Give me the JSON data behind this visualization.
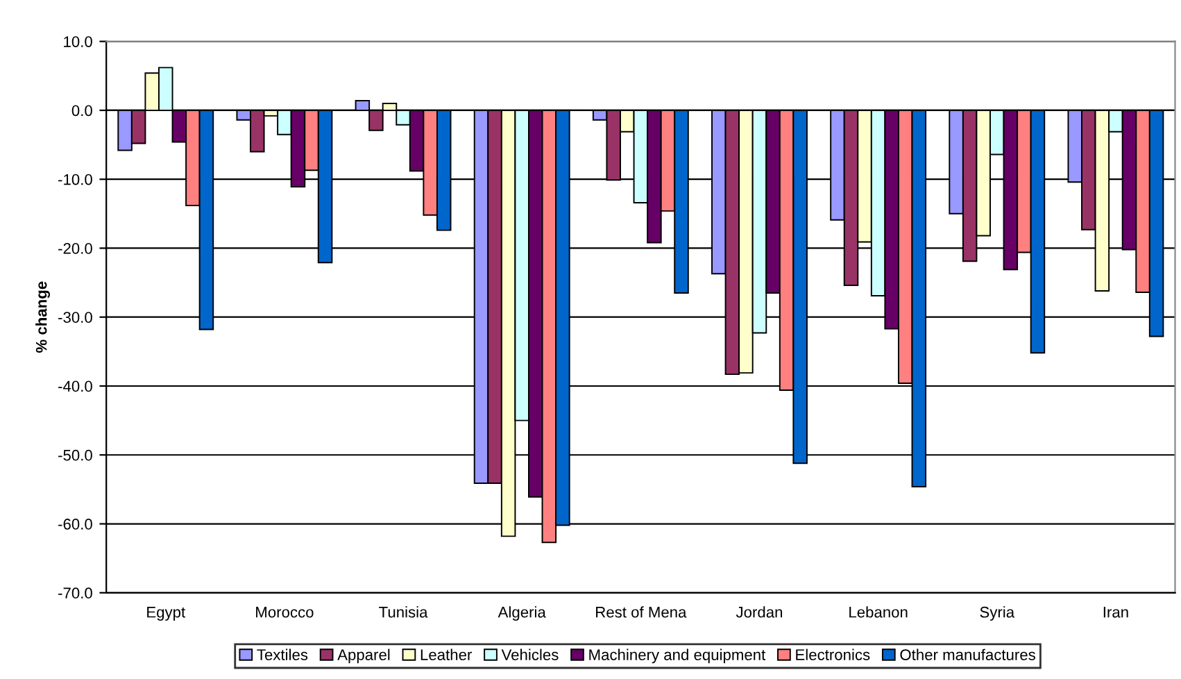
{
  "chart_data": {
    "type": "bar",
    "ylabel": "% change",
    "categories": [
      "Egypt",
      "Morocco",
      "Tunisia",
      "Algeria",
      "Rest of Mena",
      "Jordan",
      "Lebanon",
      "Syria",
      "Iran"
    ],
    "series": [
      {
        "name": "Textiles",
        "color": "#9999ff",
        "values": [
          -5.8,
          -1.4,
          1.4,
          -54.1,
          -1.4,
          -23.7,
          -15.9,
          -15.0,
          -10.4
        ]
      },
      {
        "name": "Apparel",
        "color": "#993366",
        "values": [
          -4.8,
          -6.0,
          -2.9,
          -54.1,
          -10.1,
          -38.3,
          -25.4,
          -21.9,
          -17.3
        ]
      },
      {
        "name": "Leather",
        "color": "#ffffcc",
        "values": [
          5.4,
          -0.8,
          1.0,
          -61.8,
          -3.1,
          -38.1,
          -19.1,
          -18.2,
          -26.2
        ]
      },
      {
        "name": "Vehicles",
        "color": "#ccffff",
        "values": [
          6.2,
          -3.5,
          -2.1,
          -45.0,
          -13.4,
          -32.3,
          -26.9,
          -6.4,
          -3.1
        ]
      },
      {
        "name": "Machinery and equipment",
        "color": "#660066",
        "values": [
          -4.6,
          -11.1,
          -8.8,
          -56.1,
          -19.2,
          -26.5,
          -31.7,
          -23.1,
          -20.2
        ]
      },
      {
        "name": "Electronics",
        "color": "#ff8080",
        "values": [
          -13.8,
          -8.7,
          -15.2,
          -62.7,
          -14.6,
          -40.6,
          -39.6,
          -20.6,
          -26.4
        ]
      },
      {
        "name": "Other manufactures",
        "color": "#0066cc",
        "values": [
          -31.8,
          -22.1,
          -17.4,
          -60.2,
          -26.5,
          -51.2,
          -54.6,
          -35.2,
          -32.8
        ]
      }
    ],
    "ylim": [
      -70,
      10
    ],
    "yticks": [
      {
        "value": 10,
        "label": "10.0"
      },
      {
        "value": 0,
        "label": "0.0"
      },
      {
        "value": -10,
        "label": "-10.0"
      },
      {
        "value": -20,
        "label": "-20.0"
      },
      {
        "value": -30,
        "label": "-30.0"
      },
      {
        "value": -40,
        "label": "-40.0"
      },
      {
        "value": -50,
        "label": "-50.0"
      },
      {
        "value": -60,
        "label": "-60.0"
      },
      {
        "value": -70,
        "label": "-70.0"
      }
    ],
    "grid": "y",
    "legend": "bottom"
  }
}
